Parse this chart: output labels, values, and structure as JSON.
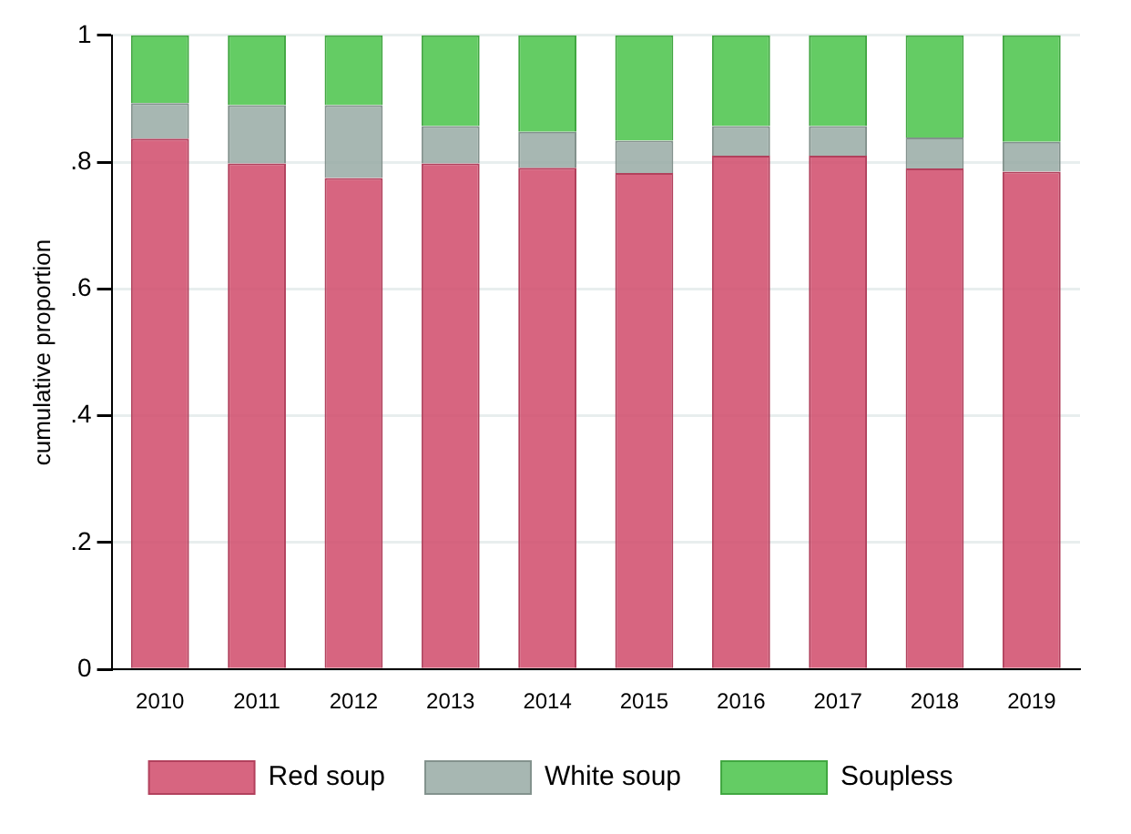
{
  "chart_data": {
    "type": "bar",
    "stacked": true,
    "ylabel": "cumulative proportion",
    "categories": [
      "2010",
      "2011",
      "2012",
      "2013",
      "2014",
      "2015",
      "2016",
      "2017",
      "2018",
      "2019"
    ],
    "series": [
      {
        "name": "Red soup",
        "color": "#d14d6d",
        "values": [
          0.837,
          0.798,
          0.775,
          0.798,
          0.791,
          0.783,
          0.81,
          0.81,
          0.79,
          0.785
        ]
      },
      {
        "name": "White soup",
        "color": "#9aaca6",
        "values": [
          0.056,
          0.092,
          0.115,
          0.059,
          0.057,
          0.051,
          0.047,
          0.047,
          0.049,
          0.047
        ]
      },
      {
        "name": "Soupless",
        "color": "#4cc44c",
        "values": [
          0.107,
          0.11,
          0.11,
          0.143,
          0.152,
          0.166,
          0.143,
          0.143,
          0.161,
          0.168
        ]
      }
    ],
    "ylim": [
      0,
      1
    ],
    "yticks": [
      0,
      {
        "value": 0.2,
        "label": ".2"
      },
      {
        "value": 0.4,
        "label": ".4"
      },
      {
        "value": 0.6,
        "label": ".6"
      },
      {
        "value": 0.8,
        "label": ".8"
      },
      1
    ],
    "grid": "y",
    "legend": "bottom"
  }
}
